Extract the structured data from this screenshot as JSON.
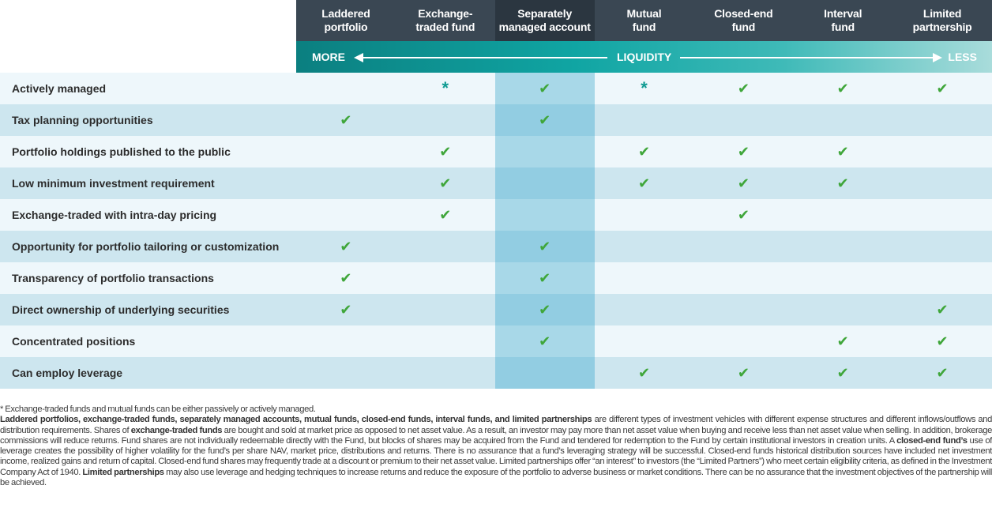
{
  "columns": [
    {
      "label": "Laddered\nportfolio"
    },
    {
      "label": "Exchange-\ntraded fund"
    },
    {
      "label": "Separately\nmanaged account"
    },
    {
      "label": "Mutual\nfund"
    },
    {
      "label": "Closed-end\nfund"
    },
    {
      "label": "Interval\nfund"
    },
    {
      "label": "Limited\npartnership"
    }
  ],
  "liquidity": {
    "more": "MORE",
    "label": "LIQUIDITY",
    "less": "LESS"
  },
  "symbols": {
    "check": "✔",
    "star": "*"
  },
  "rows": [
    {
      "label": "Actively managed",
      "marks": [
        "",
        "*",
        "check",
        "*",
        "check",
        "check",
        "check"
      ]
    },
    {
      "label": "Tax planning opportunities",
      "marks": [
        "check",
        "",
        "check",
        "",
        "",
        "",
        ""
      ]
    },
    {
      "label": "Portfolio holdings published to the public",
      "marks": [
        "",
        "check",
        "",
        "check",
        "check",
        "check",
        ""
      ]
    },
    {
      "label": "Low minimum investment requirement",
      "marks": [
        "",
        "check",
        "",
        "check",
        "check",
        "check",
        ""
      ]
    },
    {
      "label": "Exchange-traded with intra-day pricing",
      "marks": [
        "",
        "check",
        "",
        "",
        "check",
        "",
        ""
      ]
    },
    {
      "label": "Opportunity for portfolio tailoring or customization",
      "marks": [
        "check",
        "",
        "check",
        "",
        "",
        "",
        ""
      ]
    },
    {
      "label": "Transparency of portfolio transactions",
      "marks": [
        "check",
        "",
        "check",
        "",
        "",
        "",
        ""
      ]
    },
    {
      "label": "Direct ownership of underlying securities",
      "marks": [
        "check",
        "",
        "check",
        "",
        "",
        "",
        "check"
      ]
    },
    {
      "label": "Concentrated positions",
      "marks": [
        "",
        "",
        "check",
        "",
        "",
        "check",
        "check"
      ]
    },
    {
      "label": "Can employ leverage",
      "marks": [
        "",
        "",
        "",
        "check",
        "check",
        "check",
        "check"
      ]
    }
  ],
  "footnotes": {
    "star_note": "* Exchange-traded funds and mutual funds can be either passively or actively managed.",
    "b1": "Laddered portfolios, exchange-traded funds, separately managed accounts, mutual funds, closed-end funds, interval funds, and limited partnerships",
    "t1": " are different types of investment vehicles with different expense structures and different inflows/outflows and distribution requirements. Shares of ",
    "b2": "exchange-traded funds",
    "t2": " are bought and sold at market price as opposed to net asset value. As a result, an investor may pay more than net asset value when buying and receive less than net asset value when selling. In addition, brokerage commissions will reduce returns. Fund shares are not individually redeemable directly with the Fund, but blocks of shares may be acquired from the Fund and tendered for redemption to the Fund by certain institutional investors in creation units. A ",
    "b3": "closed-end fund’s",
    "t3": " use of leverage creates the possibility of higher volatility for the fund’s per share NAV, market price, distributions and returns. There is no assurance that a fund’s leveraging strategy will be successful. Closed-end funds historical distribution sources have included net investment income, realized gains and return of capital. Closed-end fund shares may frequently trade at a discount or premium to their net asset value. Limited partnerships offer “an interest” to investors (the “Limited Partners”) who meet certain eligibility criteria, as defined in the Investment Company Act of 1940. ",
    "b4": "Limited partnerships",
    "t4": " may also use leverage and hedging techniques to increase returns and reduce the exposure of the portfolio to adverse business or market conditions. There can be no assurance that the investment objectives of the partnership will be achieved."
  }
}
